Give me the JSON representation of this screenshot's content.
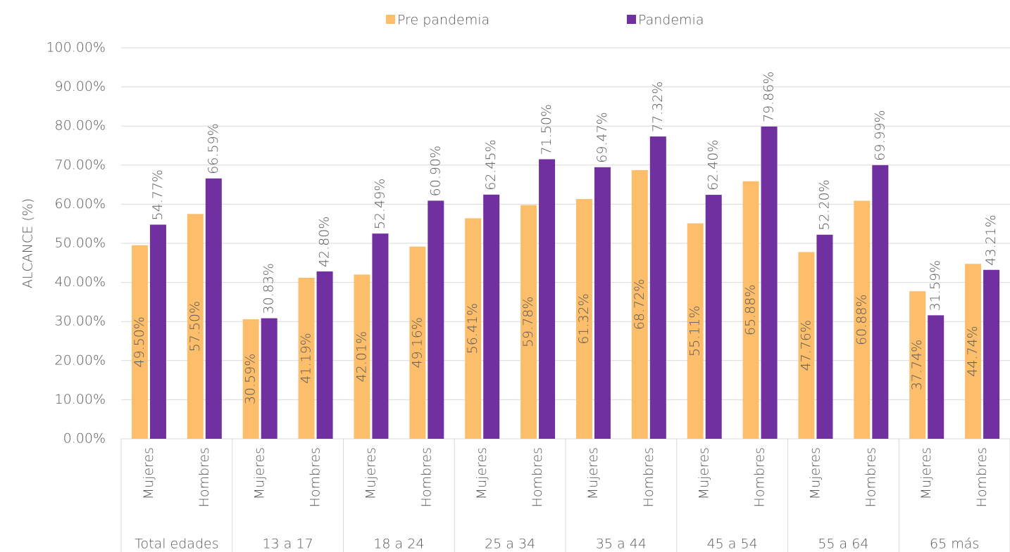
{
  "chart_data": {
    "type": "bar",
    "ylabel": "ALCANCE (%)",
    "groups": [
      "Total edades",
      "13 a 17",
      "18 a 24",
      "25 a 34",
      "35 a 44",
      "45 a 54",
      "55 a 64",
      "65 más"
    ],
    "categories": [
      "Mujeres",
      "Hombres",
      "Mujeres",
      "Hombres",
      "Mujeres",
      "Hombres",
      "Mujeres",
      "Hombres",
      "Mujeres",
      "Hombres",
      "Mujeres",
      "Hombres",
      "Mujeres",
      "Hombres",
      "Mujeres",
      "Hombres"
    ],
    "series": [
      {
        "name": "Pre pandemia",
        "color": "#fdbe6b",
        "values": [
          49.5,
          57.5,
          30.59,
          41.19,
          42.01,
          49.16,
          56.41,
          59.78,
          61.32,
          68.72,
          55.11,
          65.88,
          47.76,
          60.88,
          37.74,
          44.74
        ],
        "value_labels": [
          "49.50%",
          "57.50%",
          "30.59%",
          "41.19%",
          "42.01%",
          "49.16%",
          "56.41%",
          "59.78%",
          "61.32%",
          "68.72%",
          "55.11%",
          "65.88%",
          "47.76%",
          "60.88%",
          "37.74%",
          "44.74%"
        ]
      },
      {
        "name": "Pandemia",
        "color": "#7030a0",
        "values": [
          54.77,
          66.59,
          30.83,
          42.8,
          52.49,
          60.9,
          62.45,
          71.5,
          69.47,
          77.32,
          62.4,
          79.86,
          52.2,
          69.99,
          31.59,
          43.21
        ],
        "value_labels": [
          "54.77%",
          "66.59%",
          "30.83%",
          "42.80%",
          "52.49%",
          "60.90%",
          "62.45%",
          "71.50%",
          "69.47%",
          "77.32%",
          "62.40%",
          "79.86%",
          "52.20%",
          "69.99%",
          "31.59%",
          "43.21%"
        ]
      }
    ],
    "ylim": [
      0,
      100
    ],
    "yticks": [
      {
        "value": 0,
        "label": "0.00%"
      },
      {
        "value": 10,
        "label": "10.00%"
      },
      {
        "value": 20,
        "label": "20.00%"
      },
      {
        "value": 30,
        "label": "30.00%"
      },
      {
        "value": 40,
        "label": "40.00%"
      },
      {
        "value": 50,
        "label": "50.00%"
      },
      {
        "value": 60,
        "label": "60.00%"
      },
      {
        "value": 70,
        "label": "70.00%"
      },
      {
        "value": 80,
        "label": "80.00%"
      },
      {
        "value": 90,
        "label": "90.00%"
      },
      {
        "value": 100,
        "label": "100.00%"
      }
    ],
    "grid": true,
    "legend": "top"
  }
}
